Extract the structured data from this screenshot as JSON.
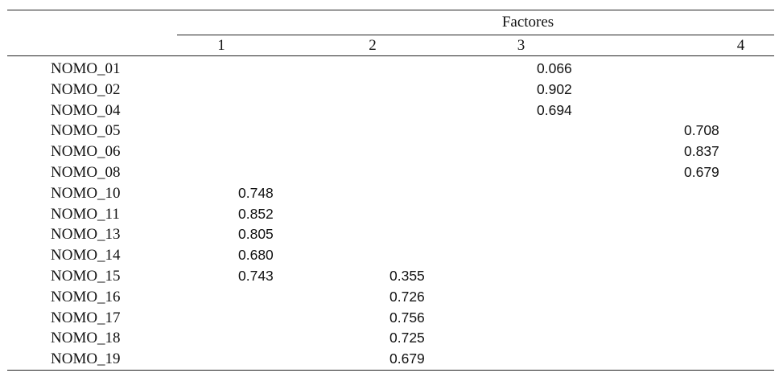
{
  "table": {
    "group_header": "Factores",
    "columns": [
      "1",
      "2",
      "3",
      "4"
    ],
    "rows": [
      {
        "label": "NOMO_01",
        "values": [
          "",
          "",
          "0.066",
          ""
        ]
      },
      {
        "label": "NOMO_02",
        "values": [
          "",
          "",
          "0.902",
          ""
        ]
      },
      {
        "label": "NOMO_04",
        "values": [
          "",
          "",
          "0.694",
          ""
        ]
      },
      {
        "label": "NOMO_05",
        "values": [
          "",
          "",
          "",
          "0.708"
        ]
      },
      {
        "label": "NOMO_06",
        "values": [
          "",
          "",
          "",
          "0.837"
        ]
      },
      {
        "label": "NOMO_08",
        "values": [
          "",
          "",
          "",
          "0.679"
        ]
      },
      {
        "label": "NOMO_10",
        "values": [
          "0.748",
          "",
          "",
          ""
        ]
      },
      {
        "label": "NOMO_11",
        "values": [
          "0.852",
          "",
          "",
          ""
        ]
      },
      {
        "label": "NOMO_13",
        "values": [
          "0.805",
          "",
          "",
          ""
        ]
      },
      {
        "label": "NOMO_14",
        "values": [
          "0.680",
          "",
          "",
          ""
        ]
      },
      {
        "label": "NOMO_15",
        "values": [
          "0.743",
          "0.355",
          "",
          ""
        ]
      },
      {
        "label": "NOMO_16",
        "values": [
          "",
          "0.726",
          "",
          ""
        ]
      },
      {
        "label": "NOMO_17",
        "values": [
          "",
          "0.756",
          "",
          ""
        ]
      },
      {
        "label": "NOMO_18",
        "values": [
          "",
          "0.725",
          "",
          ""
        ]
      },
      {
        "label": "NOMO_19",
        "values": [
          "",
          "0.679",
          "",
          ""
        ]
      }
    ]
  }
}
